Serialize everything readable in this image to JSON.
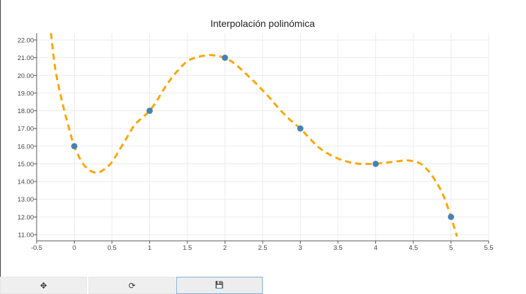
{
  "chart_data": {
    "type": "line",
    "title": "Interpolación polinómica",
    "xlabel": "",
    "ylabel": "",
    "xlim": [
      -0.5,
      5.5
    ],
    "ylim": [
      10.8,
      22.3
    ],
    "grid": true,
    "x_ticks": [
      "-0.5",
      "0",
      "0.5",
      "1",
      "1.5",
      "2",
      "2.5",
      "3",
      "3.5",
      "4",
      "4.5",
      "5",
      "5.5"
    ],
    "y_ticks": [
      "11.00",
      "12.00",
      "13.00",
      "14.00",
      "15.00",
      "16.00",
      "17.00",
      "18.00",
      "19.00",
      "20.00",
      "21.00",
      "22.00"
    ],
    "series": [
      {
        "style": "markers",
        "color": "#4682b4",
        "x": [
          0,
          1,
          2,
          3,
          4,
          5
        ],
        "y": [
          16,
          18,
          21,
          17,
          15,
          12
        ]
      },
      {
        "style": "dashed-line",
        "color": "#ffa500",
        "x": [
          -0.31,
          -0.25,
          -0.15,
          -0.05,
          0,
          0.1,
          0.2,
          0.3,
          0.4,
          0.5,
          0.6,
          0.7,
          0.8,
          0.9,
          1.0,
          1.1,
          1.2,
          1.3,
          1.4,
          1.5,
          1.6,
          1.7,
          1.8,
          1.9,
          2.0,
          2.1,
          2.2,
          2.3,
          2.4,
          2.5,
          2.6,
          2.7,
          2.8,
          2.9,
          3.0,
          3.1,
          3.2,
          3.3,
          3.4,
          3.5,
          3.6,
          3.7,
          3.8,
          3.9,
          4.0,
          4.1,
          4.2,
          4.3,
          4.4,
          4.5,
          4.6,
          4.7,
          4.8,
          4.9,
          5.0,
          5.05,
          5.08
        ],
        "y": [
          22.4,
          20.3,
          18.3,
          16.7,
          16.0,
          15.1,
          14.65,
          14.5,
          14.7,
          15.1,
          15.8,
          16.5,
          17.2,
          17.6,
          18.0,
          18.6,
          19.3,
          19.9,
          20.4,
          20.8,
          21.0,
          21.1,
          21.15,
          21.1,
          21.0,
          20.75,
          20.4,
          20.0,
          19.6,
          19.15,
          18.7,
          18.2,
          17.75,
          17.35,
          17.0,
          16.55,
          16.1,
          15.75,
          15.5,
          15.3,
          15.15,
          15.05,
          15.0,
          15.0,
          15.0,
          15.05,
          15.1,
          15.15,
          15.2,
          15.15,
          15.0,
          14.6,
          14.0,
          13.2,
          12.0,
          11.3,
          10.9
        ]
      }
    ]
  },
  "toolbar": {
    "buttons": [
      {
        "name": "pan",
        "icon": "move-icon",
        "glyph": "✥"
      },
      {
        "name": "reset",
        "icon": "refresh-icon",
        "glyph": "⟳"
      },
      {
        "name": "save",
        "icon": "save-icon",
        "glyph": "💾"
      }
    ]
  }
}
